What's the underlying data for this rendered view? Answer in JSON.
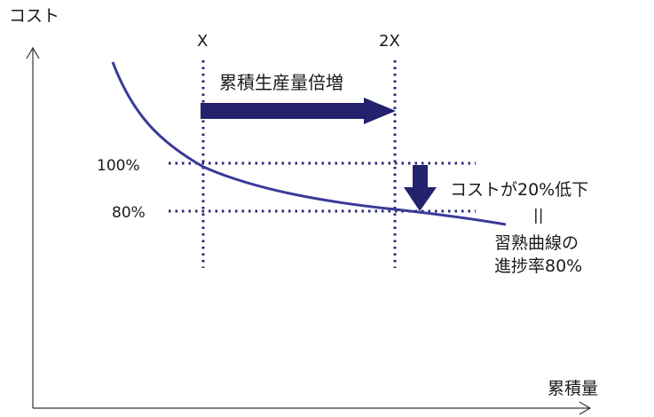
{
  "diagram": {
    "y_axis_label": "コスト",
    "x_axis_label": "累積量",
    "x_marker_label": "X",
    "x2_marker_label": "2X",
    "horizontal_arrow_label": "累積生産量倍増",
    "cost_100_label": "100%",
    "cost_80_label": "80%",
    "cost_drop_label": "コストが20%低下",
    "equals_sign": "||",
    "learning_curve_label_line1": "習熟曲線の",
    "learning_curve_label_line2": "進捗率80%",
    "colors": {
      "curve": "#3a3a9a",
      "arrow": "#22226e",
      "axis": "#333333",
      "dotted": "#26267a",
      "text": "#1a1a1a"
    }
  }
}
